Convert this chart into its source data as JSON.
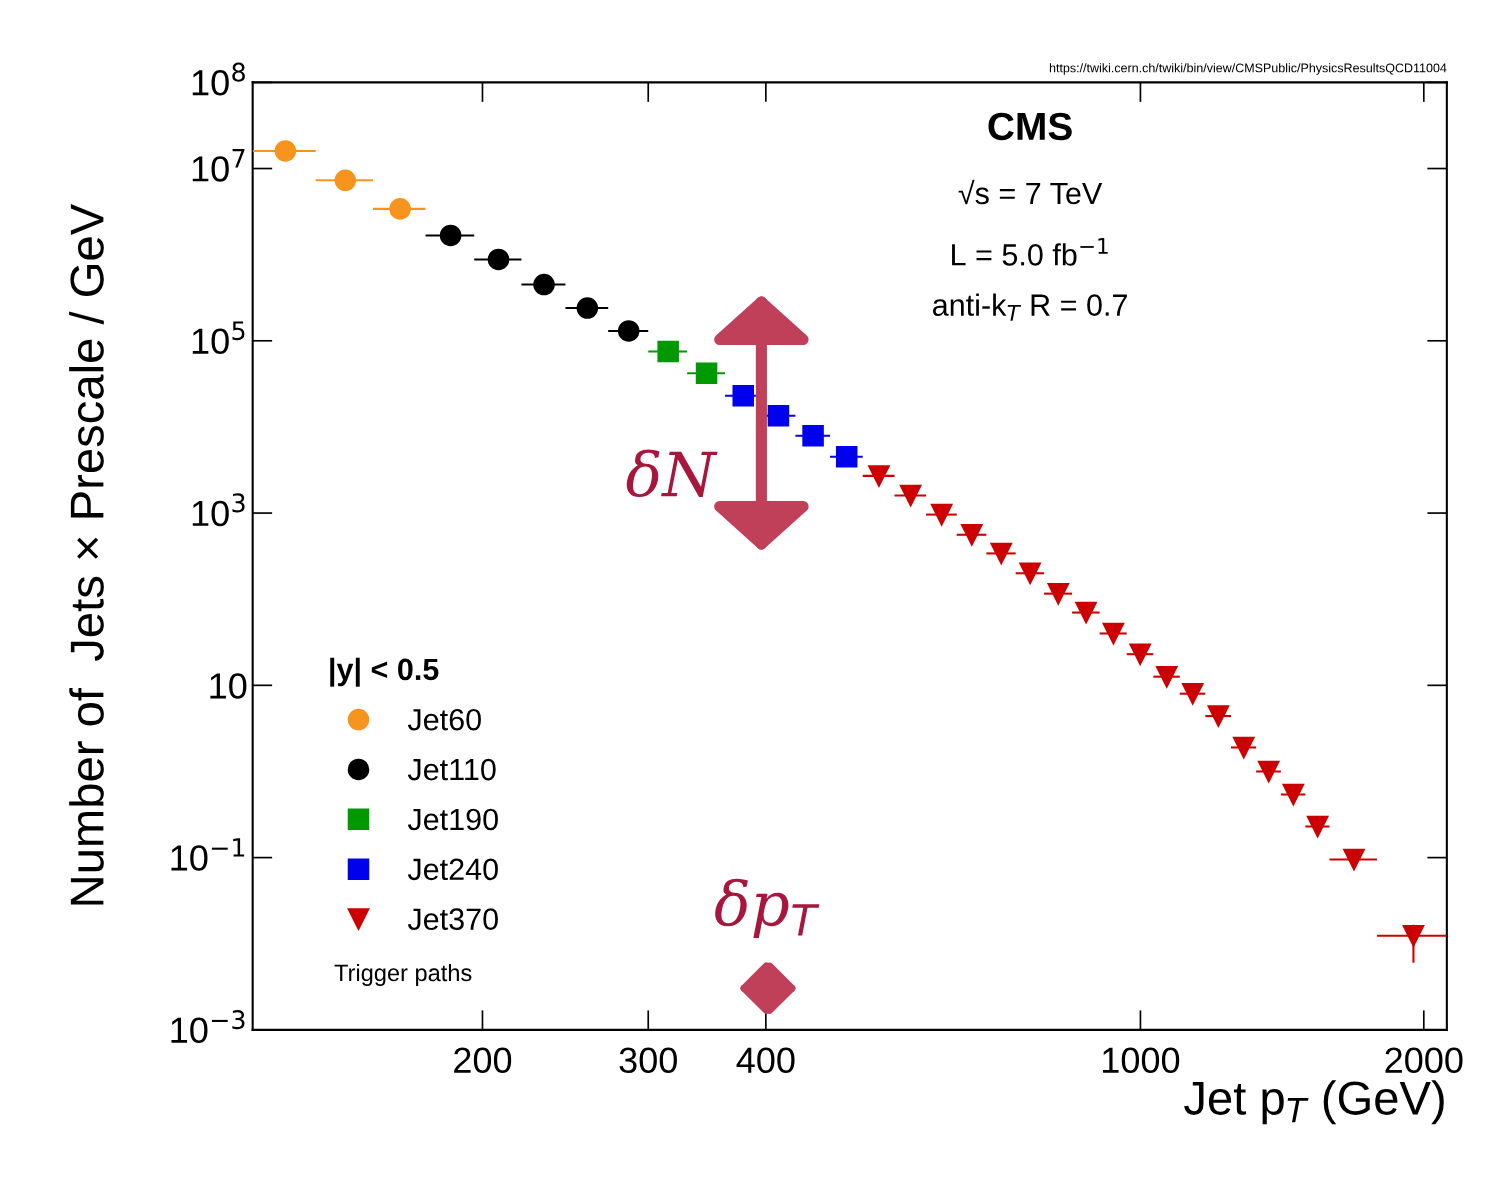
{
  "chart_data": {
    "type": "scatter",
    "xlabel": "Jet p$_{T}$ (GeV)",
    "ylabel": "Number of  Jets × Prescale / GeV",
    "legend_title": "|y| < 0.5",
    "legend": "bottom left",
    "log": "xy",
    "grid": false,
    "xlim": [
      114,
      2116
    ],
    "ylim": [
      0.001,
      100000000
    ],
    "xticks": [
      200,
      300,
      400,
      1000,
      2000
    ],
    "yticks": [
      {
        "value": 0.001,
        "label": "10$^{−3}$"
      },
      {
        "value": 0.1,
        "label": "10$^{−1}$"
      },
      10,
      {
        "value": 1000,
        "label": "10$^{3}$"
      },
      {
        "value": 100000,
        "label": "10$^{5}$"
      },
      {
        "value": 10000000,
        "label": "10$^{7}$"
      },
      {
        "value": 100000000,
        "label": "10$^{8}$"
      }
    ],
    "annotations": [
      "https://twiki.cern.ch/twiki/bin/view/CMSPublic/PhysicsResultsQCD11004",
      "CMS",
      "√s = 7 TeV",
      "L = 5.0 fb$^{−1}$",
      "anti-k$_{T}$ R = 0.7",
      "Trigger paths",
      "δN",
      "δp$_{T}$"
    ],
    "series": [
      {
        "name": "Jet60",
        "color": "#f7941d",
        "marker": "circle",
        "x": [
          123.5,
          143,
          163.5
        ],
        "values": [
          16000000,
          7300000,
          3400000
        ],
        "xerrors": [
          9.5,
          10,
          10.5
        ]
      },
      {
        "name": "Jet110",
        "color": "#000000",
        "marker": "circle",
        "x": [
          185,
          208,
          232.5,
          258.5,
          286
        ],
        "values": [
          1670000,
          880000,
          450000,
          240000,
          130000
        ],
        "xerrors": [
          11,
          12,
          12.5,
          13.5,
          14
        ]
      },
      {
        "name": "Jet190",
        "color": "#009900",
        "marker": "square",
        "x": [
          315,
          346
        ],
        "values": [
          75000,
          42000
        ],
        "xerrors": [
          15,
          16
        ]
      },
      {
        "name": "Jet240",
        "color": "#0000ee",
        "marker": "square",
        "x": [
          378.5,
          412.5,
          449,
          487.5
        ],
        "values": [
          23000,
          13500,
          7900,
          4500
        ],
        "xerrors": [
          16.5,
          17.5,
          19,
          19.5
        ]
      },
      {
        "name": "Jet370",
        "color": "#cc0000",
        "marker": "triangle",
        "x": [
          527.5,
          570,
          615,
          662,
          711.5,
          763.5,
          818,
          875.5,
          936,
          999.5,
          1066.5,
          1136.5,
          1210,
          1287.5,
          1368.5,
          1453.5,
          1542.5,
          1686,
          1950
        ],
        "values": [
          2700,
          1600,
          960,
          560,
          340,
          200,
          116,
          70,
          40,
          23,
          12.6,
          8,
          4.4,
          1.9,
          1,
          0.54,
          0.23,
          0.095,
          0.0124
        ],
        "xerrors": [
          20.5,
          22,
          23,
          24,
          25.5,
          26.5,
          28,
          29.5,
          31,
          32.5,
          34.5,
          35.5,
          38,
          39.5,
          41.5,
          43.5,
          45.5,
          98,
          166
        ],
        "errors": [
          null,
          null,
          null,
          null,
          null,
          null,
          null,
          null,
          null,
          null,
          null,
          null,
          null,
          null,
          null,
          null,
          null,
          null,
          [
            0.006,
            0.0166
          ]
        ]
      }
    ]
  }
}
